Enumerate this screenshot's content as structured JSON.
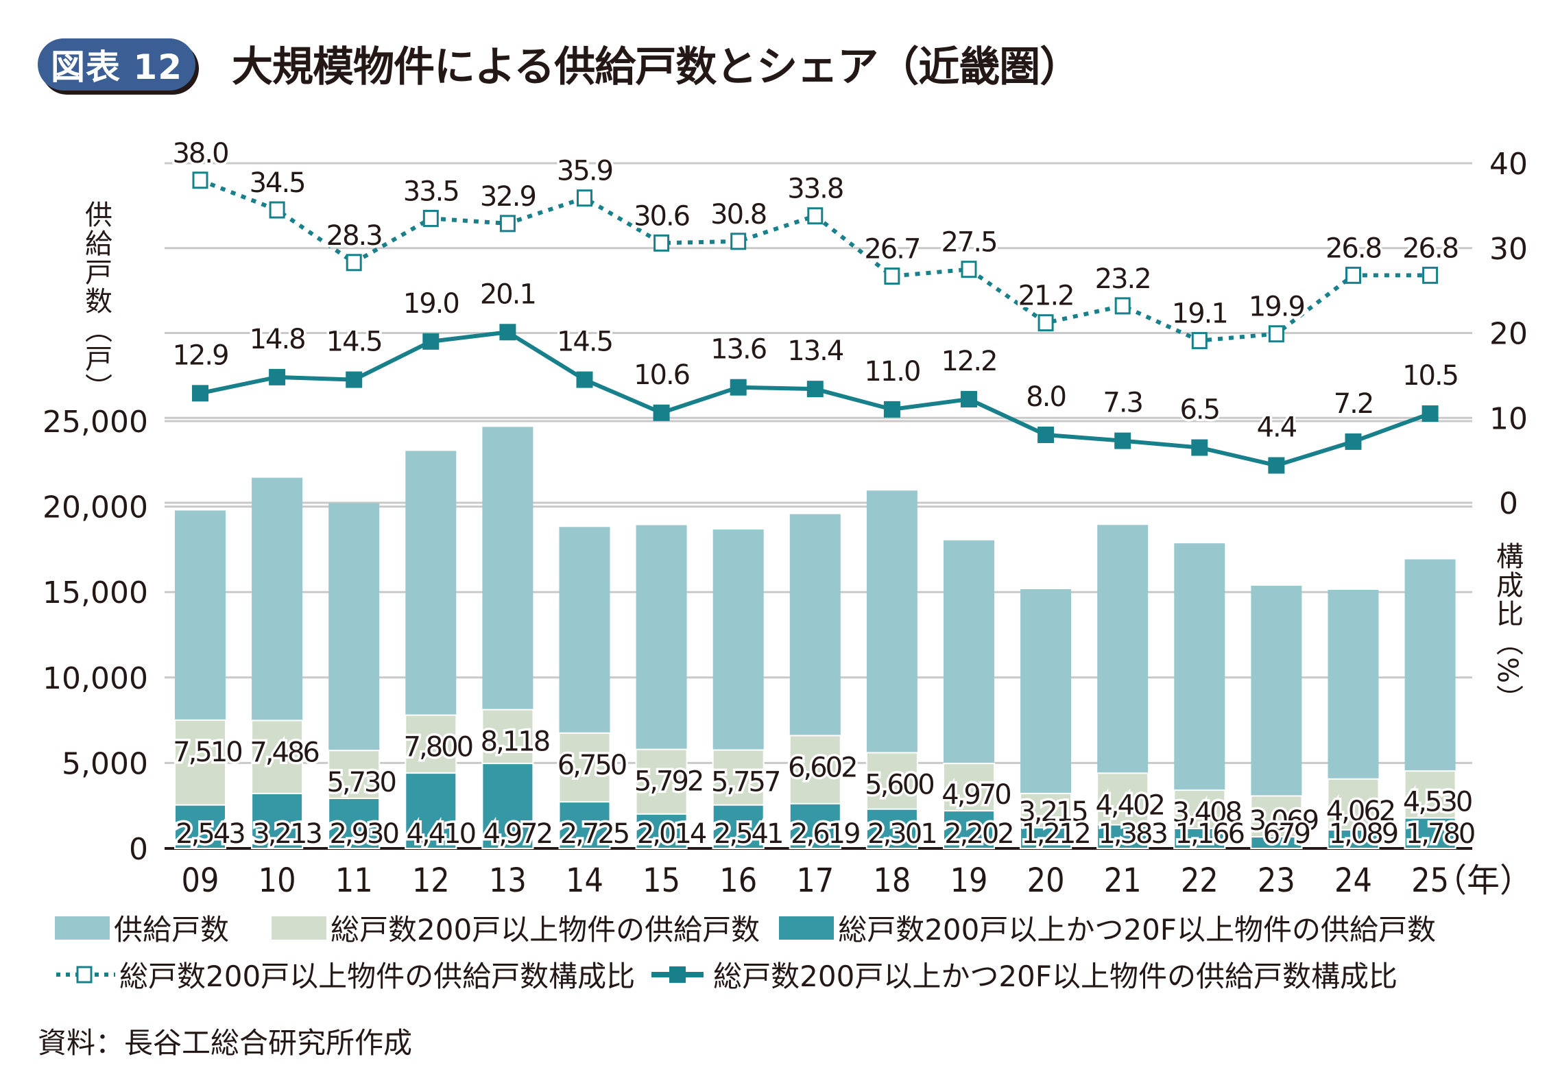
{
  "header": {
    "badge": "図表 12",
    "title": "大規模物件による供給戸数とシェア（近畿圏）"
  },
  "axes": {
    "left_label": "供給戸数（戸）",
    "right_label": "構成比（%）",
    "x_unit": "（年）"
  },
  "source": "資料：長谷工総合研究所作成",
  "colors": {
    "total": "#98c7cd",
    "over200": "#d3ddcb",
    "over200_20f": "#3598a4",
    "line": "#17808b",
    "grid": "#c9c9c9",
    "badge": "#3b5e95"
  },
  "chart_data": {
    "type": "bar",
    "title": "大規模物件による供給戸数とシェア（近畿圏）",
    "xlabel": "（年）",
    "ylabel": "供給戸数（戸）",
    "y2label": "構成比（%）",
    "categories": [
      "09",
      "10",
      "11",
      "12",
      "13",
      "14",
      "15",
      "16",
      "17",
      "18",
      "19",
      "20",
      "21",
      "22",
      "23",
      "24",
      "25"
    ],
    "ylim": [
      0,
      25000
    ],
    "yticks": [
      "0",
      "5,000",
      "10,000",
      "15,000",
      "20,000",
      "25,000"
    ],
    "y2lim": [
      0,
      40
    ],
    "y2ticks": [
      "0",
      "10",
      "20",
      "30",
      "40"
    ],
    "grid": true,
    "legend_position": "bottom",
    "series": [
      {
        "name": "供給戸数",
        "type": "bar",
        "axis": "left",
        "values": [
          19772,
          21689,
          20201,
          23258,
          24665,
          18807,
          18914,
          18660,
          19558,
          20938,
          18027,
          15168,
          18926,
          17852,
          15369,
          15128,
          16913
        ]
      },
      {
        "name": "総戸数200戸以上物件の供給戸数",
        "type": "bar",
        "axis": "left",
        "values": [
          7510,
          7486,
          5730,
          7800,
          8118,
          6750,
          5792,
          5757,
          6602,
          5600,
          4970,
          3215,
          4402,
          3408,
          3069,
          4062,
          4530
        ],
        "labels": [
          "7,510",
          "7,486",
          "5,730",
          "7,800",
          "8,118",
          "6,750",
          "5,792",
          "5,757",
          "6,602",
          "5,600",
          "4,970",
          "3,215",
          "4,402",
          "3,408",
          "3,069",
          "4,062",
          "4,530"
        ]
      },
      {
        "name": "総戸数200戸以上かつ20F以上物件の供給戸数",
        "type": "bar",
        "axis": "left",
        "values": [
          2543,
          3213,
          2930,
          4410,
          4972,
          2725,
          2014,
          2541,
          2619,
          2301,
          2202,
          1212,
          1383,
          1166,
          679,
          1089,
          1780
        ],
        "labels": [
          "2,543",
          "3,213",
          "2,930",
          "4,410",
          "4,972",
          "2,725",
          "2,014",
          "2,541",
          "2,619",
          "2,301",
          "2,202",
          "1,212",
          "1,383",
          "1,166",
          "679",
          "1,089",
          "1,780"
        ]
      },
      {
        "name": "総戸数200戸以上物件の供給戸数構成比",
        "type": "line",
        "style": "dotted",
        "marker": "open-square",
        "axis": "right",
        "values": [
          38.0,
          34.5,
          28.3,
          33.5,
          32.9,
          35.9,
          30.6,
          30.8,
          33.8,
          26.7,
          27.5,
          21.2,
          23.2,
          19.1,
          19.9,
          26.8,
          26.8
        ],
        "labels": [
          "38.0",
          "34.5",
          "28.3",
          "33.5",
          "32.9",
          "35.9",
          "30.6",
          "30.8",
          "33.8",
          "26.7",
          "27.5",
          "21.2",
          "23.2",
          "19.1",
          "19.9",
          "26.8",
          "26.8"
        ]
      },
      {
        "name": "総戸数200戸以上かつ20F以上物件の供給戸数構成比",
        "type": "line",
        "style": "solid",
        "marker": "filled-square",
        "axis": "right",
        "values": [
          12.9,
          14.8,
          14.5,
          19.0,
          20.1,
          14.5,
          10.6,
          13.6,
          13.4,
          11.0,
          12.2,
          8.0,
          7.3,
          6.5,
          4.4,
          7.2,
          10.5
        ],
        "labels": [
          "12.9",
          "14.8",
          "14.5",
          "19.0",
          "20.1",
          "14.5",
          "10.6",
          "13.6",
          "13.4",
          "11.0",
          "12.2",
          "8.0",
          "7.3",
          "6.5",
          "4.4",
          "7.2",
          "10.5"
        ]
      }
    ]
  },
  "legend": [
    {
      "label": "供給戸数",
      "kind": "swatch",
      "color": "#98c7cd"
    },
    {
      "label": "総戸数200戸以上物件の供給戸数",
      "kind": "swatch",
      "color": "#d3ddcb"
    },
    {
      "label": "総戸数200戸以上かつ20F以上物件の供給戸数",
      "kind": "swatch",
      "color": "#3598a4"
    },
    {
      "label": "総戸数200戸以上物件の供給戸数構成比",
      "kind": "dotted-line-open-square"
    },
    {
      "label": "総戸数200戸以上かつ20F以上物件の供給戸数構成比",
      "kind": "solid-line-filled-square"
    }
  ]
}
